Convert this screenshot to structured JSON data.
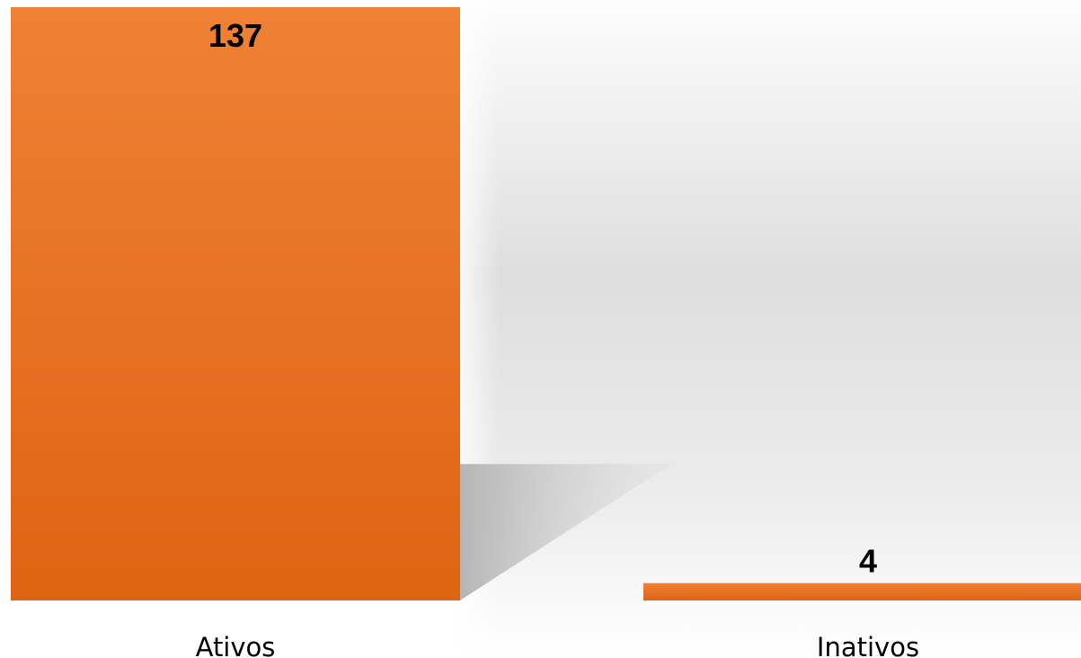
{
  "chart_data": {
    "type": "bar",
    "categories": [
      "Ativos",
      "Inativos"
    ],
    "values": [
      137,
      4
    ],
    "data_labels": [
      "137",
      "4"
    ],
    "ylim": [
      0,
      137
    ],
    "grid": false,
    "legend": "none",
    "colors": {
      "bar_top": "#ef8135",
      "bar_bottom": "#e06313",
      "shadow": "#b9b9b9",
      "backdrop_mid": "#dedede",
      "backdrop_edge": "#fdfdfd"
    }
  }
}
